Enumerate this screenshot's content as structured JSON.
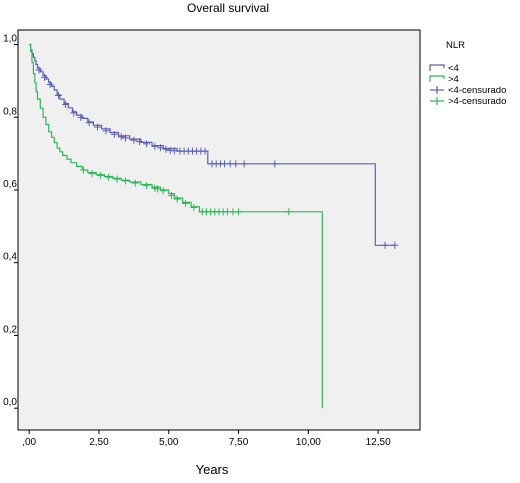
{
  "chart_data": {
    "type": "line",
    "subtype": "kaplan-meier-step",
    "title": "Overall survival",
    "xlabel": "Years",
    "ylabel": "",
    "xlim": [
      -0.4,
      14.0
    ],
    "ylim": [
      -0.06,
      1.04
    ],
    "x_ticks": [
      0,
      2.5,
      5,
      7.5,
      10,
      12.5
    ],
    "x_tick_labels": [
      ",00",
      "2,50",
      "5,00",
      "7,50",
      "10,00",
      "12,50"
    ],
    "y_ticks": [
      0,
      0.2,
      0.4,
      0.6,
      0.8,
      1.0
    ],
    "y_tick_labels": [
      "0,0",
      "0,2",
      "0,4",
      "0,6",
      "0,8",
      "1,0"
    ],
    "grid": false,
    "plot_background": "#f0f0f0",
    "legend": {
      "title": "NLR",
      "placement": "right-top",
      "entries": [
        "<4",
        ">4",
        "<4-censurado",
        ">4-censurado"
      ]
    },
    "series": [
      {
        "name": "<4",
        "color": "#5b5fb3",
        "points": [
          [
            0,
            1.0
          ],
          [
            0.05,
            0.985
          ],
          [
            0.1,
            0.975
          ],
          [
            0.15,
            0.965
          ],
          [
            0.2,
            0.955
          ],
          [
            0.25,
            0.945
          ],
          [
            0.3,
            0.935
          ],
          [
            0.4,
            0.925
          ],
          [
            0.5,
            0.915
          ],
          [
            0.6,
            0.905
          ],
          [
            0.7,
            0.895
          ],
          [
            0.8,
            0.885
          ],
          [
            0.9,
            0.875
          ],
          [
            1.0,
            0.862
          ],
          [
            1.1,
            0.85
          ],
          [
            1.25,
            0.838
          ],
          [
            1.4,
            0.826
          ],
          [
            1.55,
            0.815
          ],
          [
            1.7,
            0.806
          ],
          [
            1.9,
            0.797
          ],
          [
            2.1,
            0.787
          ],
          [
            2.3,
            0.778
          ],
          [
            2.6,
            0.768
          ],
          [
            2.9,
            0.758
          ],
          [
            3.2,
            0.749
          ],
          [
            3.6,
            0.74
          ],
          [
            4.0,
            0.731
          ],
          [
            4.4,
            0.722
          ],
          [
            4.8,
            0.714
          ],
          [
            5.3,
            0.707
          ],
          [
            6.4,
            0.672
          ],
          [
            12.4,
            0.672
          ],
          [
            12.4,
            0.448
          ],
          [
            13.1,
            0.448
          ]
        ],
        "censored": [
          [
            0.35,
            0.93
          ],
          [
            0.55,
            0.91
          ],
          [
            0.75,
            0.89
          ],
          [
            1.05,
            0.86
          ],
          [
            1.3,
            0.835
          ],
          [
            1.6,
            0.812
          ],
          [
            1.85,
            0.8
          ],
          [
            2.15,
            0.785
          ],
          [
            2.45,
            0.773
          ],
          [
            2.75,
            0.763
          ],
          [
            3.05,
            0.753
          ],
          [
            3.3,
            0.746
          ],
          [
            3.45,
            0.743
          ],
          [
            3.75,
            0.737
          ],
          [
            3.95,
            0.733
          ],
          [
            4.2,
            0.727
          ],
          [
            4.5,
            0.72
          ],
          [
            4.7,
            0.716
          ],
          [
            4.9,
            0.712
          ],
          [
            5.05,
            0.709
          ],
          [
            5.2,
            0.708
          ],
          [
            5.4,
            0.707
          ],
          [
            5.55,
            0.707
          ],
          [
            5.7,
            0.707
          ],
          [
            5.85,
            0.707
          ],
          [
            6.0,
            0.707
          ],
          [
            6.15,
            0.707
          ],
          [
            6.3,
            0.707
          ],
          [
            6.55,
            0.672
          ],
          [
            6.7,
            0.672
          ],
          [
            6.85,
            0.672
          ],
          [
            7.0,
            0.672
          ],
          [
            7.2,
            0.672
          ],
          [
            7.4,
            0.672
          ],
          [
            7.7,
            0.672
          ],
          [
            8.8,
            0.672
          ],
          [
            12.75,
            0.448
          ],
          [
            13.1,
            0.448
          ]
        ]
      },
      {
        "name": ">4",
        "color": "#2db85a",
        "points": [
          [
            0,
            1.0
          ],
          [
            0.05,
            0.98
          ],
          [
            0.1,
            0.95
          ],
          [
            0.15,
            0.92
          ],
          [
            0.2,
            0.895
          ],
          [
            0.25,
            0.87
          ],
          [
            0.3,
            0.85
          ],
          [
            0.4,
            0.825
          ],
          [
            0.5,
            0.8
          ],
          [
            0.6,
            0.78
          ],
          [
            0.7,
            0.76
          ],
          [
            0.8,
            0.745
          ],
          [
            0.9,
            0.73
          ],
          [
            1.0,
            0.715
          ],
          [
            1.1,
            0.705
          ],
          [
            1.2,
            0.695
          ],
          [
            1.35,
            0.685
          ],
          [
            1.5,
            0.675
          ],
          [
            1.7,
            0.665
          ],
          [
            1.9,
            0.655
          ],
          [
            2.1,
            0.648
          ],
          [
            2.4,
            0.642
          ],
          [
            2.7,
            0.637
          ],
          [
            3.0,
            0.632
          ],
          [
            3.3,
            0.627
          ],
          [
            3.6,
            0.622
          ],
          [
            4.0,
            0.615
          ],
          [
            4.4,
            0.608
          ],
          [
            4.7,
            0.6
          ],
          [
            5.0,
            0.59
          ],
          [
            5.2,
            0.578
          ],
          [
            5.5,
            0.566
          ],
          [
            5.8,
            0.554
          ],
          [
            6.1,
            0.54
          ],
          [
            10.5,
            0.54
          ],
          [
            10.5,
            0.0
          ]
        ],
        "censored": [
          [
            1.95,
            0.655
          ],
          [
            2.25,
            0.645
          ],
          [
            2.55,
            0.64
          ],
          [
            2.85,
            0.635
          ],
          [
            3.15,
            0.63
          ],
          [
            3.45,
            0.625
          ],
          [
            3.8,
            0.619
          ],
          [
            4.2,
            0.612
          ],
          [
            4.5,
            0.605
          ],
          [
            4.6,
            0.603
          ],
          [
            4.8,
            0.598
          ],
          [
            5.1,
            0.585
          ],
          [
            5.3,
            0.575
          ],
          [
            5.6,
            0.563
          ],
          [
            5.9,
            0.552
          ],
          [
            6.2,
            0.54
          ],
          [
            6.35,
            0.54
          ],
          [
            6.5,
            0.54
          ],
          [
            6.65,
            0.54
          ],
          [
            6.8,
            0.54
          ],
          [
            6.95,
            0.54
          ],
          [
            7.1,
            0.54
          ],
          [
            7.3,
            0.54
          ],
          [
            7.5,
            0.54
          ],
          [
            9.3,
            0.54
          ]
        ]
      }
    ]
  }
}
